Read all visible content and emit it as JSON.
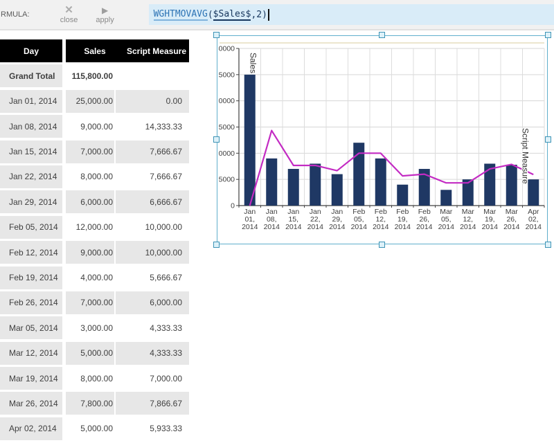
{
  "toolbar": {
    "label": "RMULA:",
    "close_label": "close",
    "apply_label": "apply",
    "formula": {
      "function": "WGHTMOVAVG",
      "paren_open": "(",
      "argument": "$Sales$",
      "tail": ",2)"
    }
  },
  "table": {
    "columns": {
      "day": "Day",
      "sales": "Sales",
      "script": "Script Measure"
    },
    "rows": [
      {
        "day": "Grand Total",
        "sales": "115,800.00",
        "script": "",
        "bold": true
      },
      {
        "day": "Jan 01, 2014",
        "sales": "25,000.00",
        "script": "0.00",
        "bold": false
      },
      {
        "day": "Jan 08, 2014",
        "sales": "9,000.00",
        "script": "14,333.33",
        "bold": false
      },
      {
        "day": "Jan 15, 2014",
        "sales": "7,000.00",
        "script": "7,666.67",
        "bold": false
      },
      {
        "day": "Jan 22, 2014",
        "sales": "8,000.00",
        "script": "7,666.67",
        "bold": false
      },
      {
        "day": "Jan 29, 2014",
        "sales": "6,000.00",
        "script": "6,666.67",
        "bold": false
      },
      {
        "day": "Feb 05, 2014",
        "sales": "12,000.00",
        "script": "10,000.00",
        "bold": false
      },
      {
        "day": "Feb 12, 2014",
        "sales": "9,000.00",
        "script": "10,000.00",
        "bold": false
      },
      {
        "day": "Feb 19, 2014",
        "sales": "4,000.00",
        "script": "5,666.67",
        "bold": false
      },
      {
        "day": "Feb 26, 2014",
        "sales": "7,000.00",
        "script": "6,000.00",
        "bold": false
      },
      {
        "day": "Mar 05, 2014",
        "sales": "3,000.00",
        "script": "4,333.33",
        "bold": false
      },
      {
        "day": "Mar 12, 2014",
        "sales": "5,000.00",
        "script": "4,333.33",
        "bold": false
      },
      {
        "day": "Mar 19, 2014",
        "sales": "8,000.00",
        "script": "7,000.00",
        "bold": false
      },
      {
        "day": "Mar 26, 2014",
        "sales": "7,800.00",
        "script": "7,866.67",
        "bold": false
      },
      {
        "day": "Apr 02, 2014",
        "sales": "5,000.00",
        "script": "5,933.33",
        "bold": false
      }
    ]
  },
  "chart_data": {
    "type": "bar",
    "title": "",
    "xlabel": "",
    "ylabel": "",
    "categories": [
      "Jan 01, 2014",
      "Jan 08, 2014",
      "Jan 15, 2014",
      "Jan 22, 2014",
      "Jan 29, 2014",
      "Feb 05, 2014",
      "Feb 12, 2014",
      "Feb 19, 2014",
      "Feb 26, 2014",
      "Mar 05, 2014",
      "Mar 12, 2014",
      "Mar 19, 2014",
      "Mar 26, 2014",
      "Apr 02, 2014"
    ],
    "series": [
      {
        "name": "Sales",
        "type": "bar",
        "color": "#1F3864",
        "values": [
          25000,
          9000,
          7000,
          8000,
          6000,
          12000,
          9000,
          4000,
          7000,
          3000,
          5000,
          8000,
          7800,
          5000
        ]
      },
      {
        "name": "Script Measure",
        "type": "line",
        "color": "#C32BC3",
        "values": [
          0,
          14333.33,
          7666.67,
          7666.67,
          6666.67,
          10000,
          10000,
          5666.67,
          6000,
          4333.33,
          4333.33,
          7000,
          7866.67,
          5933.33
        ]
      }
    ],
    "ylim": [
      0,
      30000
    ],
    "ytick_step": 5000,
    "grid": true,
    "legend_position": "series labels rotated 90deg inside plot",
    "selected": true
  },
  "colors": {
    "selection_frame": "#5FAECC",
    "bar": "#1F3864",
    "line": "#C32BC3",
    "table_header_bg": "#000000",
    "row_shade": "#E7E7E7",
    "formula_bg": "#D9ECF8",
    "gridline": "#D6D6D6",
    "axis": "#404040"
  }
}
